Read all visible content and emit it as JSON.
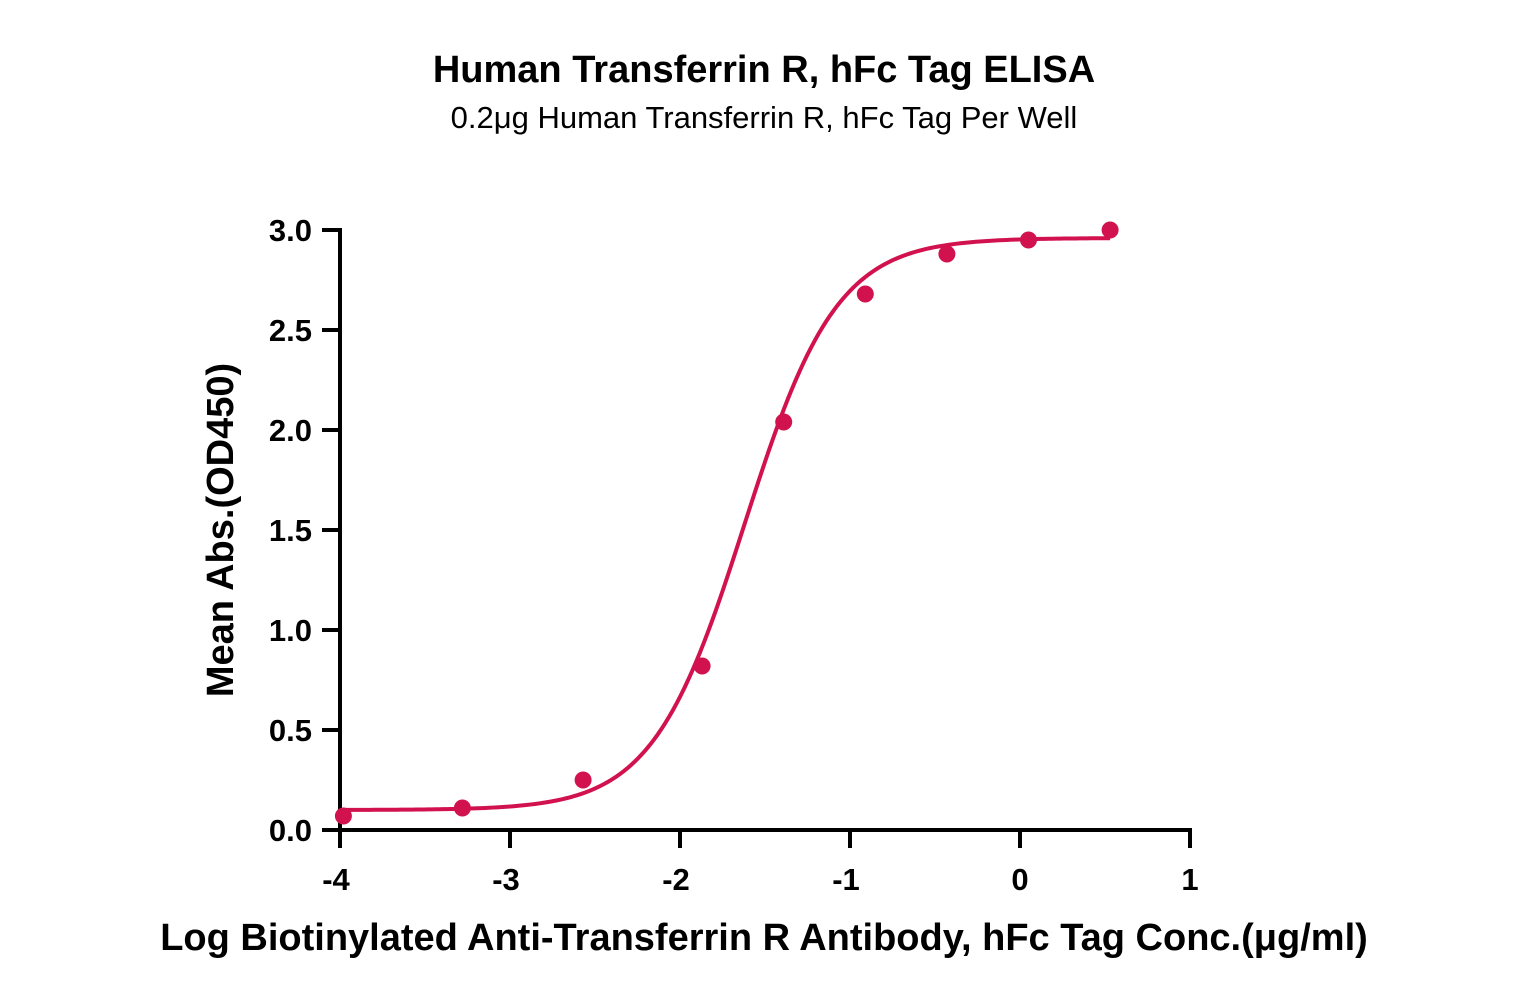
{
  "chart_data": {
    "type": "scatter",
    "title": "Human Transferrin R, hFc Tag ELISA",
    "subtitle": "0.2μg Human Transferrin R, hFc Tag Per Well",
    "xlabel": "Log Biotinylated Anti-Transferrin R Antibody, hFc Tag Conc.(μg/ml)",
    "ylabel": "Mean Abs.(OD450)",
    "xlim": [
      -4,
      1
    ],
    "ylim": [
      0,
      3.0
    ],
    "x_ticks": [
      "-4",
      "-3",
      "-2",
      "-1",
      "0",
      "1"
    ],
    "y_ticks": [
      "0.0",
      "0.5",
      "1.0",
      "1.5",
      "2.0",
      "2.5",
      "3.0"
    ],
    "grid": false,
    "legend": "none",
    "color": "#d1124f",
    "series": [
      {
        "x": [
          -3.98,
          -3.28,
          -2.57,
          -1.87,
          -1.39,
          -0.91,
          -0.43,
          0.05,
          0.53
        ],
        "y": [
          0.07,
          0.11,
          0.25,
          0.82,
          2.04,
          2.68,
          2.88,
          2.95,
          3.0
        ]
      }
    ],
    "fit_curve": {
      "model": "4PL",
      "bottom": 0.1,
      "top": 2.96,
      "log_ec50": -1.62,
      "hill_slope": 1.6
    }
  }
}
